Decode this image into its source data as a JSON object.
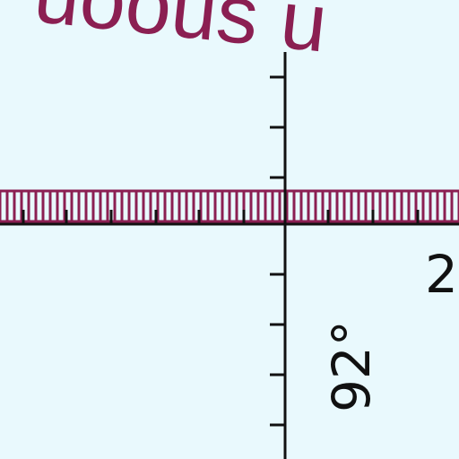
{
  "map": {
    "top_label_visible": "uoous u",
    "grid_label_right": "2",
    "grid_label_rotated": "92°"
  },
  "colors": {
    "background": "#e9f9fd",
    "label_magenta": "#8b1f52",
    "grid_black": "#111111"
  },
  "marks": {
    "vertical_axis": "grid-line",
    "horizontal_axis": "grid-line",
    "dense_band": "hatched-railway-band"
  }
}
